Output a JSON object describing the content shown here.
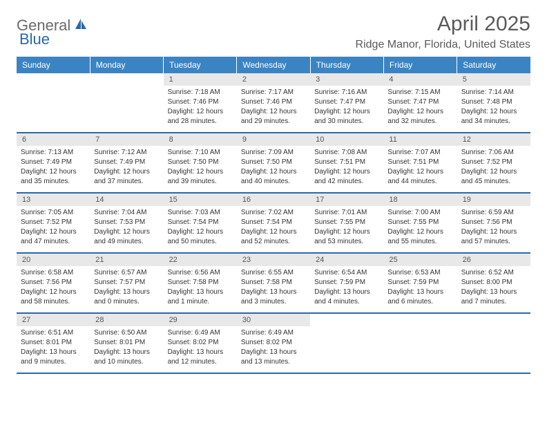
{
  "logo": {
    "text1": "General",
    "text2": "Blue"
  },
  "title": "April 2025",
  "location": "Ridge Manor, Florida, United States",
  "headerColor": "#3b84c4",
  "accentColor": "#2968a8",
  "dayNumBg": "#e8e8e8",
  "dayHeaders": [
    "Sunday",
    "Monday",
    "Tuesday",
    "Wednesday",
    "Thursday",
    "Friday",
    "Saturday"
  ],
  "weeks": [
    [
      null,
      null,
      {
        "num": "1",
        "sunrise": "Sunrise: 7:18 AM",
        "sunset": "Sunset: 7:46 PM",
        "daylight": "Daylight: 12 hours and 28 minutes."
      },
      {
        "num": "2",
        "sunrise": "Sunrise: 7:17 AM",
        "sunset": "Sunset: 7:46 PM",
        "daylight": "Daylight: 12 hours and 29 minutes."
      },
      {
        "num": "3",
        "sunrise": "Sunrise: 7:16 AM",
        "sunset": "Sunset: 7:47 PM",
        "daylight": "Daylight: 12 hours and 30 minutes."
      },
      {
        "num": "4",
        "sunrise": "Sunrise: 7:15 AM",
        "sunset": "Sunset: 7:47 PM",
        "daylight": "Daylight: 12 hours and 32 minutes."
      },
      {
        "num": "5",
        "sunrise": "Sunrise: 7:14 AM",
        "sunset": "Sunset: 7:48 PM",
        "daylight": "Daylight: 12 hours and 34 minutes."
      }
    ],
    [
      {
        "num": "6",
        "sunrise": "Sunrise: 7:13 AM",
        "sunset": "Sunset: 7:49 PM",
        "daylight": "Daylight: 12 hours and 35 minutes."
      },
      {
        "num": "7",
        "sunrise": "Sunrise: 7:12 AM",
        "sunset": "Sunset: 7:49 PM",
        "daylight": "Daylight: 12 hours and 37 minutes."
      },
      {
        "num": "8",
        "sunrise": "Sunrise: 7:10 AM",
        "sunset": "Sunset: 7:50 PM",
        "daylight": "Daylight: 12 hours and 39 minutes."
      },
      {
        "num": "9",
        "sunrise": "Sunrise: 7:09 AM",
        "sunset": "Sunset: 7:50 PM",
        "daylight": "Daylight: 12 hours and 40 minutes."
      },
      {
        "num": "10",
        "sunrise": "Sunrise: 7:08 AM",
        "sunset": "Sunset: 7:51 PM",
        "daylight": "Daylight: 12 hours and 42 minutes."
      },
      {
        "num": "11",
        "sunrise": "Sunrise: 7:07 AM",
        "sunset": "Sunset: 7:51 PM",
        "daylight": "Daylight: 12 hours and 44 minutes."
      },
      {
        "num": "12",
        "sunrise": "Sunrise: 7:06 AM",
        "sunset": "Sunset: 7:52 PM",
        "daylight": "Daylight: 12 hours and 45 minutes."
      }
    ],
    [
      {
        "num": "13",
        "sunrise": "Sunrise: 7:05 AM",
        "sunset": "Sunset: 7:52 PM",
        "daylight": "Daylight: 12 hours and 47 minutes."
      },
      {
        "num": "14",
        "sunrise": "Sunrise: 7:04 AM",
        "sunset": "Sunset: 7:53 PM",
        "daylight": "Daylight: 12 hours and 49 minutes."
      },
      {
        "num": "15",
        "sunrise": "Sunrise: 7:03 AM",
        "sunset": "Sunset: 7:54 PM",
        "daylight": "Daylight: 12 hours and 50 minutes."
      },
      {
        "num": "16",
        "sunrise": "Sunrise: 7:02 AM",
        "sunset": "Sunset: 7:54 PM",
        "daylight": "Daylight: 12 hours and 52 minutes."
      },
      {
        "num": "17",
        "sunrise": "Sunrise: 7:01 AM",
        "sunset": "Sunset: 7:55 PM",
        "daylight": "Daylight: 12 hours and 53 minutes."
      },
      {
        "num": "18",
        "sunrise": "Sunrise: 7:00 AM",
        "sunset": "Sunset: 7:55 PM",
        "daylight": "Daylight: 12 hours and 55 minutes."
      },
      {
        "num": "19",
        "sunrise": "Sunrise: 6:59 AM",
        "sunset": "Sunset: 7:56 PM",
        "daylight": "Daylight: 12 hours and 57 minutes."
      }
    ],
    [
      {
        "num": "20",
        "sunrise": "Sunrise: 6:58 AM",
        "sunset": "Sunset: 7:56 PM",
        "daylight": "Daylight: 12 hours and 58 minutes."
      },
      {
        "num": "21",
        "sunrise": "Sunrise: 6:57 AM",
        "sunset": "Sunset: 7:57 PM",
        "daylight": "Daylight: 13 hours and 0 minutes."
      },
      {
        "num": "22",
        "sunrise": "Sunrise: 6:56 AM",
        "sunset": "Sunset: 7:58 PM",
        "daylight": "Daylight: 13 hours and 1 minute."
      },
      {
        "num": "23",
        "sunrise": "Sunrise: 6:55 AM",
        "sunset": "Sunset: 7:58 PM",
        "daylight": "Daylight: 13 hours and 3 minutes."
      },
      {
        "num": "24",
        "sunrise": "Sunrise: 6:54 AM",
        "sunset": "Sunset: 7:59 PM",
        "daylight": "Daylight: 13 hours and 4 minutes."
      },
      {
        "num": "25",
        "sunrise": "Sunrise: 6:53 AM",
        "sunset": "Sunset: 7:59 PM",
        "daylight": "Daylight: 13 hours and 6 minutes."
      },
      {
        "num": "26",
        "sunrise": "Sunrise: 6:52 AM",
        "sunset": "Sunset: 8:00 PM",
        "daylight": "Daylight: 13 hours and 7 minutes."
      }
    ],
    [
      {
        "num": "27",
        "sunrise": "Sunrise: 6:51 AM",
        "sunset": "Sunset: 8:01 PM",
        "daylight": "Daylight: 13 hours and 9 minutes."
      },
      {
        "num": "28",
        "sunrise": "Sunrise: 6:50 AM",
        "sunset": "Sunset: 8:01 PM",
        "daylight": "Daylight: 13 hours and 10 minutes."
      },
      {
        "num": "29",
        "sunrise": "Sunrise: 6:49 AM",
        "sunset": "Sunset: 8:02 PM",
        "daylight": "Daylight: 13 hours and 12 minutes."
      },
      {
        "num": "30",
        "sunrise": "Sunrise: 6:49 AM",
        "sunset": "Sunset: 8:02 PM",
        "daylight": "Daylight: 13 hours and 13 minutes."
      },
      null,
      null,
      null
    ]
  ]
}
